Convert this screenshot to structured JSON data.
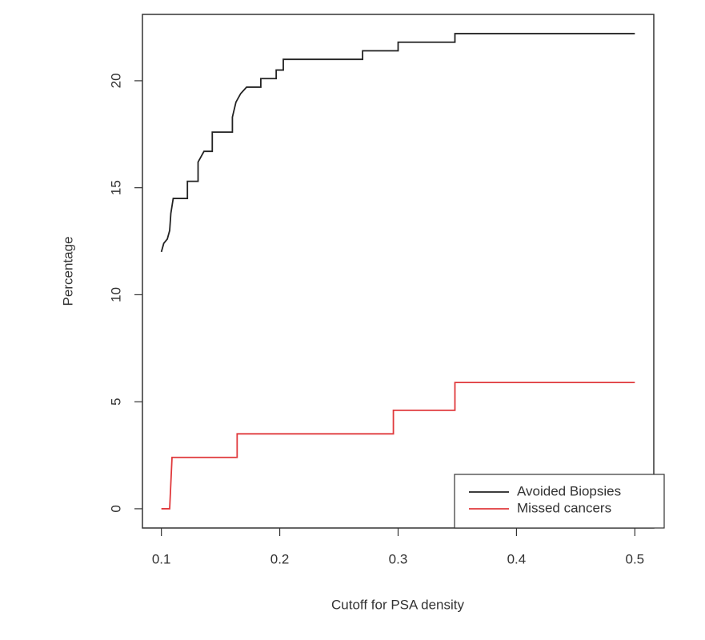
{
  "chart_data": {
    "type": "line",
    "xlabel": "Cutoff for PSA density",
    "ylabel": "Percentage",
    "xlim": [
      0.084,
      0.516
    ],
    "ylim": [
      -0.9,
      23.1
    ],
    "xticks": [
      0.1,
      0.2,
      0.3,
      0.4,
      0.5
    ],
    "yticks": [
      0,
      5,
      10,
      15,
      20
    ],
    "legend": "bottom-right",
    "series": [
      {
        "name": "Avoided Biopsies",
        "color": "#222222",
        "x": [
          0.1,
          0.102,
          0.105,
          0.107,
          0.108,
          0.11,
          0.122,
          0.122,
          0.131,
          0.131,
          0.136,
          0.143,
          0.143,
          0.16,
          0.16,
          0.163,
          0.167,
          0.172,
          0.184,
          0.184,
          0.197,
          0.197,
          0.203,
          0.203,
          0.27,
          0.27,
          0.3,
          0.3,
          0.348,
          0.348,
          0.5
        ],
        "values": [
          12.0,
          12.4,
          12.6,
          13.0,
          13.8,
          14.5,
          14.5,
          15.3,
          15.3,
          16.2,
          16.7,
          16.7,
          17.6,
          17.6,
          18.3,
          19.0,
          19.4,
          19.7,
          19.7,
          20.1,
          20.1,
          20.5,
          20.5,
          21.0,
          21.0,
          21.4,
          21.4,
          21.8,
          21.8,
          22.2,
          22.2
        ]
      },
      {
        "name": "Missed cancers",
        "color": "#e0393c",
        "x": [
          0.1,
          0.107,
          0.109,
          0.164,
          0.164,
          0.296,
          0.296,
          0.348,
          0.348,
          0.5
        ],
        "values": [
          0,
          0,
          2.4,
          2.4,
          3.5,
          3.5,
          4.6,
          4.6,
          5.9,
          5.9
        ]
      }
    ]
  }
}
